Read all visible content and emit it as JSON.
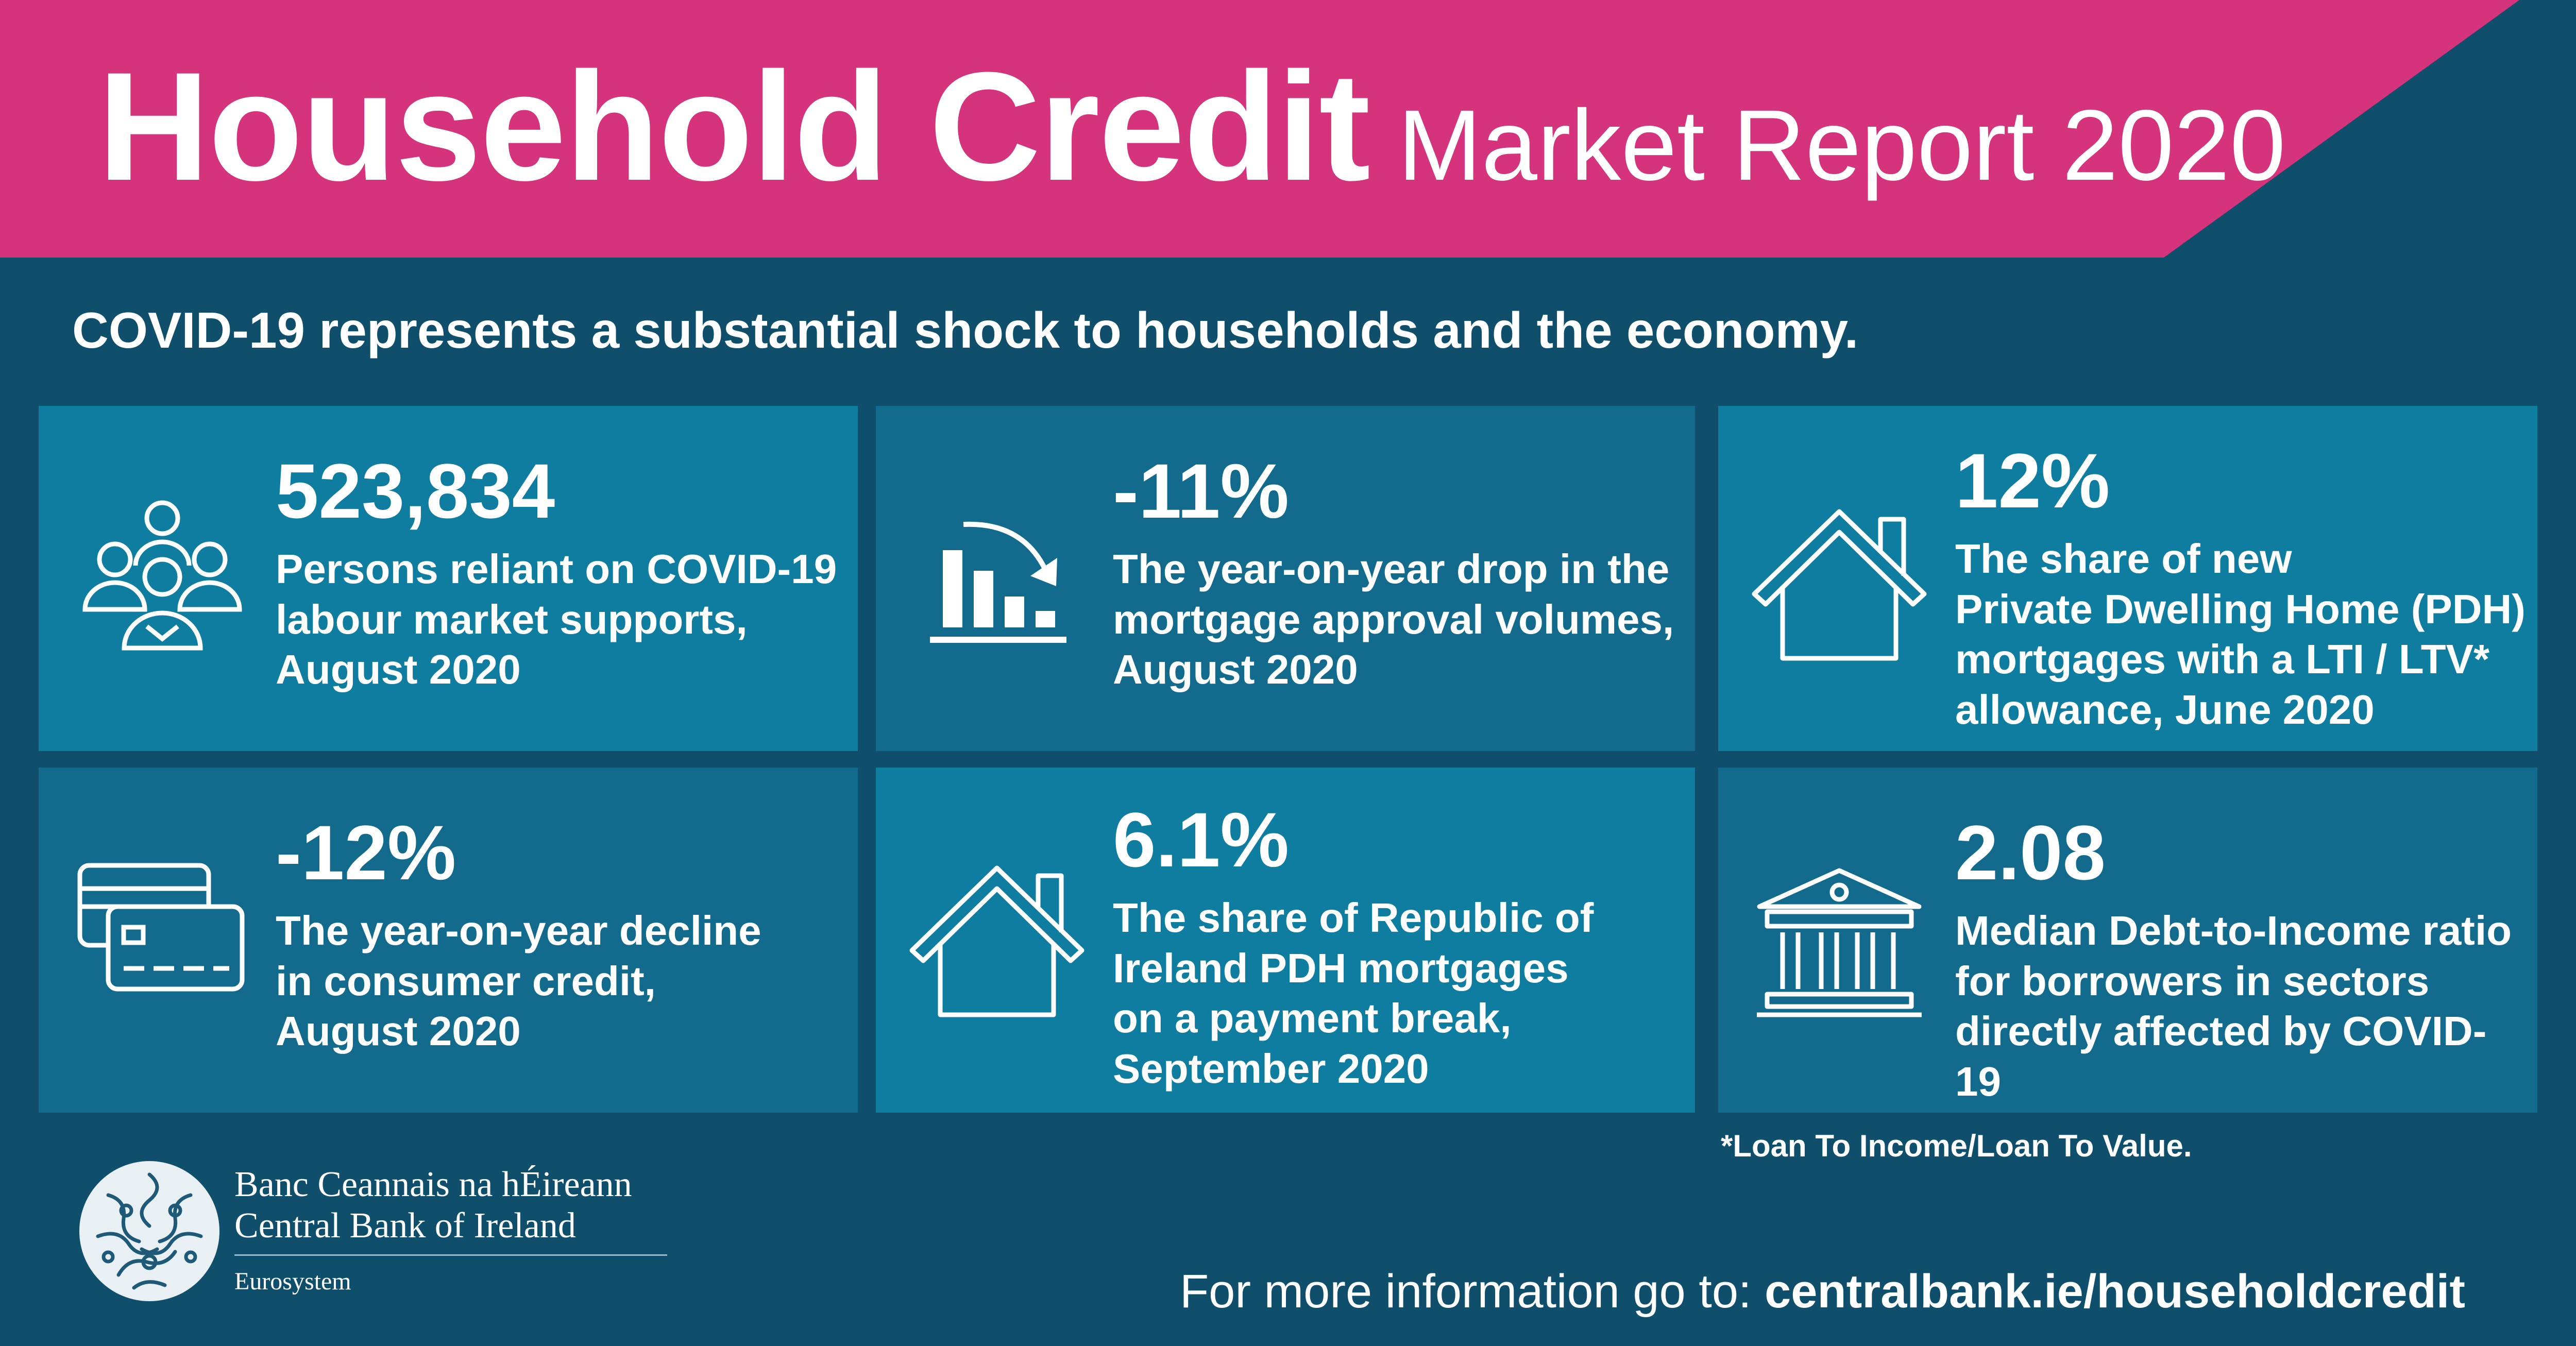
{
  "colors": {
    "banner_pink": "#d5337c",
    "background": "#0f4f6c",
    "card_light": "#0f7da0",
    "card_dark": "#126a8c",
    "text": "#ffffff"
  },
  "header": {
    "title_strong": "Household Credit",
    "title_light": "Market Report 2020"
  },
  "subtitle": "COVID-19 represents a substantial shock to households and the economy.",
  "cards": [
    {
      "icon": "people-group-icon",
      "value": "523,834",
      "desc": [
        "Persons reliant on COVID-19",
        "labour market supports,",
        "August 2020"
      ]
    },
    {
      "icon": "declining-bar-chart-icon",
      "value": "-11%",
      "desc": [
        "The year-on-year drop in the",
        "mortgage approval volumes,",
        "August 2020"
      ]
    },
    {
      "icon": "house-icon",
      "value": "12%",
      "desc": [
        "The share of new",
        "Private Dwelling Home (PDH)",
        "mortgages with a LTI / LTV*",
        "allowance, June 2020"
      ]
    },
    {
      "icon": "credit-cards-icon",
      "value": "-12%",
      "desc": [
        "The year-on-year decline",
        "in consumer credit,",
        "August 2020"
      ]
    },
    {
      "icon": "house-icon",
      "value": "6.1%",
      "desc": [
        "The share of Republic of",
        "Ireland PDH mortgages",
        "on a payment break,",
        "September 2020"
      ]
    },
    {
      "icon": "bank-building-icon",
      "value": "2.08",
      "desc": [
        "Median Debt-to-Income ratio",
        "for borrowers in sectors",
        "directly affected by COVID-19"
      ]
    }
  ],
  "footnote": "*Loan To Income/Loan To Value.",
  "logo": {
    "name_ga": "Banc Ceannais na hÉireann",
    "name_en": "Central Bank of Ireland",
    "eurosystem": "Eurosystem",
    "icon": "central-bank-seal-icon"
  },
  "footer": {
    "info_label": "For more information go to:",
    "url": "centralbank.ie/householdcredit"
  }
}
